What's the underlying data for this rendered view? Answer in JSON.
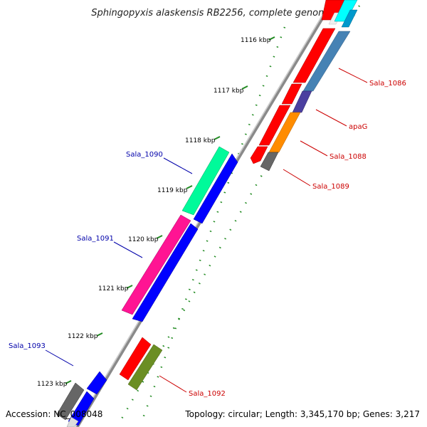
{
  "title": "Sphingopyxis alaskensis RB2256, complete genome",
  "footer": {
    "accession": "Accession: NC_008048",
    "topology": "Topology: circular; Length: 3,345,170 bp; Genes: 3,217"
  },
  "colors": {
    "forward_label": "#cc0000",
    "reverse_label": "#0000aa",
    "backbone": "#999999",
    "tick": "#228b22"
  },
  "kbp_labels": [
    "1116 kbp",
    "1117 kbp",
    "1118 kbp",
    "1119 kbp",
    "1120 kbp",
    "1121 kbp",
    "1122 kbp",
    "1123 kbp"
  ],
  "gene_labels": {
    "sala_1086": "Sala_1086",
    "apag": "apaG",
    "sala_1088": "Sala_1088",
    "sala_1089": "Sala_1089",
    "sala_1090": "Sala_1090",
    "sala_1091": "Sala_1091",
    "sala_1092": "Sala_1092",
    "sala_1093": "Sala_1093"
  }
}
